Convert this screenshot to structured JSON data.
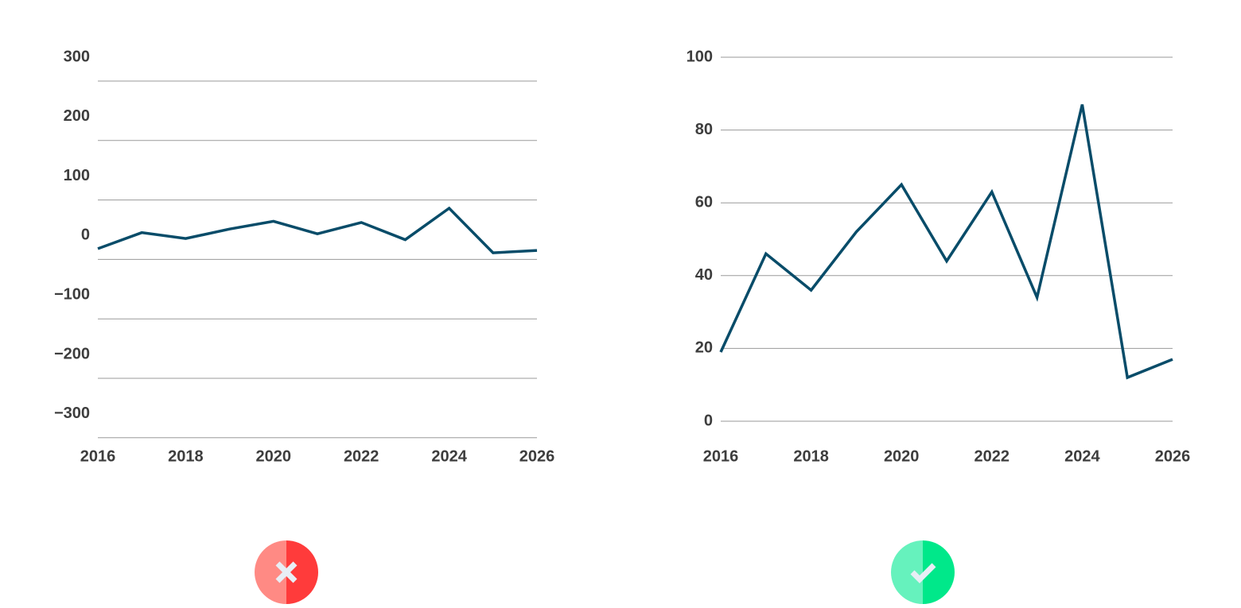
{
  "chart_data": [
    {
      "type": "line",
      "x": [
        2016,
        2017,
        2018,
        2019,
        2020,
        2021,
        2022,
        2023,
        2024,
        2025,
        2026
      ],
      "series": [
        {
          "values": [
            -22,
            5,
            -5,
            11,
            24,
            3,
            22,
            -7,
            46,
            -29,
            -25
          ]
        }
      ],
      "ylim": [
        -340,
        300
      ],
      "yticks": [
        300,
        200,
        100,
        0,
        -100,
        -200,
        -300
      ],
      "xticks": [
        2016,
        2018,
        2020,
        2022,
        2024,
        2026
      ],
      "ytick_labels": [
        "300",
        "200",
        "100",
        "0",
        "−100",
        "−200",
        "−300"
      ],
      "xtick_labels": [
        "2016",
        "2018",
        "2020",
        "2022",
        "2024",
        "2026"
      ],
      "grid": true,
      "gridlines": [
        250,
        150,
        50,
        -50,
        -150,
        -250,
        -350
      ],
      "title": "",
      "xlabel": "",
      "ylabel": ""
    },
    {
      "type": "line",
      "x": [
        2016,
        2017,
        2018,
        2019,
        2020,
        2021,
        2022,
        2023,
        2024,
        2025,
        2026
      ],
      "series": [
        {
          "values": [
            19,
            46,
            36,
            52,
            65,
            44,
            63,
            34,
            87,
            12,
            17
          ]
        }
      ],
      "ylim": [
        0,
        100
      ],
      "yticks": [
        100,
        80,
        60,
        40,
        20,
        0
      ],
      "xticks": [
        2016,
        2018,
        2020,
        2022,
        2024,
        2026
      ],
      "ytick_labels": [
        "100",
        "80",
        "60",
        "40",
        "20",
        "0"
      ],
      "xtick_labels": [
        "2016",
        "2018",
        "2020",
        "2022",
        "2024",
        "2026"
      ],
      "grid": true,
      "gridlines": [
        100,
        80,
        60,
        40,
        20,
        0
      ],
      "title": "",
      "xlabel": "",
      "ylabel": ""
    }
  ],
  "colors": {
    "series": "#084c69",
    "grid": "#9a9a9a",
    "tick_text": "#3d3d3d",
    "bad_light": "#ff8a84",
    "bad_dark": "#ff3b3b",
    "good_light": "#66f2bd",
    "good_dark": "#00e88a",
    "badge_mark": "#e8eef5"
  },
  "badges": {
    "bad_icon": "cross-icon",
    "good_icon": "check-icon"
  }
}
